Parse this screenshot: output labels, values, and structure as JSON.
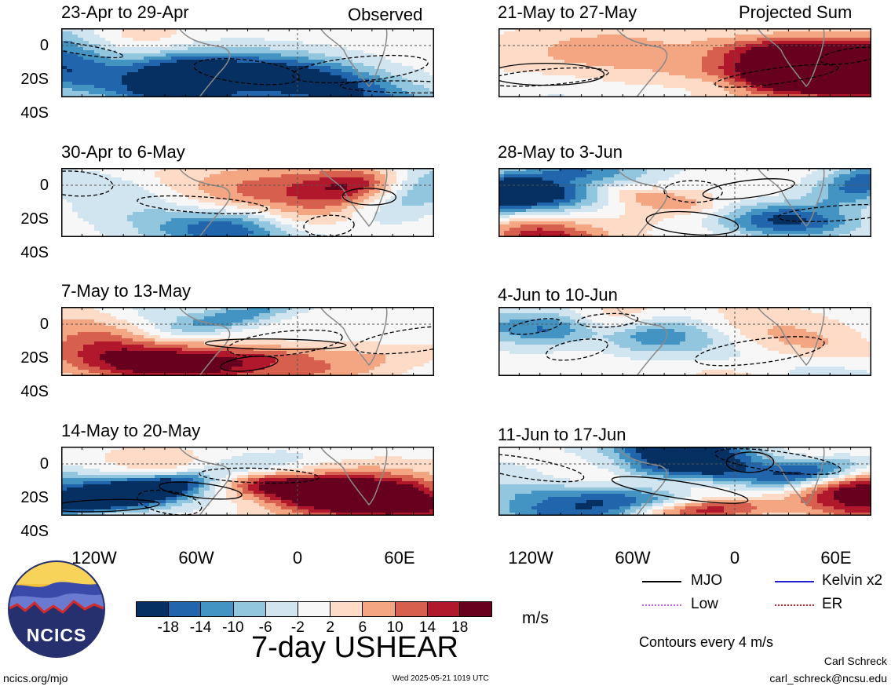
{
  "left_column": {
    "header": "Observed",
    "panels": [
      {
        "title": "23-Apr to 29-Apr",
        "seed": 3
      },
      {
        "title": "30-Apr to 6-May",
        "seed": 11
      },
      {
        "title": "7-May to 13-May",
        "seed": 19
      },
      {
        "title": "14-May to 20-May",
        "seed": 27
      }
    ]
  },
  "right_column": {
    "header": "Projected Sum",
    "panels": [
      {
        "title": "21-May to 27-May",
        "seed": 5
      },
      {
        "title": "28-May to 3-Jun",
        "seed": 13
      },
      {
        "title": "4-Jun to 10-Jun",
        "seed": 21
      },
      {
        "title": "11-Jun to 17-Jun",
        "seed": 29
      }
    ]
  },
  "y_axis_labels": [
    "0",
    "20S",
    "40S"
  ],
  "x_axis_labels": [
    "120W",
    "60W",
    "0",
    "60E"
  ],
  "colorbar": {
    "ticks": [
      "-18",
      "-14",
      "-10",
      "-6",
      "-2",
      "2",
      "6",
      "10",
      "14",
      "18"
    ],
    "colors": [
      "#053061",
      "#2166ac",
      "#4393c3",
      "#92c5de",
      "#d1e5f0",
      "#f7f7f7",
      "#fddbc7",
      "#f4a582",
      "#d6604d",
      "#b2182b",
      "#67001f"
    ],
    "units": "m/s"
  },
  "field_title": "7-day USHEAR",
  "legend": {
    "items": [
      {
        "label": "MJO",
        "color": "#000000"
      },
      {
        "label": "Kelvin x2",
        "color": "#1f1fd0"
      },
      {
        "label": "Low",
        "color": "#c060e0"
      },
      {
        "label": "ER",
        "color": "#d02020"
      }
    ],
    "contour_note": "Contours every 4 m/s"
  },
  "logo": {
    "text": "NCICS"
  },
  "footer": {
    "left": "ncics.org/mjo",
    "center": "Wed 2025-05-21 1019 UTC",
    "author": "Carl Schreck",
    "email": "carl_schreck@ncsu.edu"
  }
}
